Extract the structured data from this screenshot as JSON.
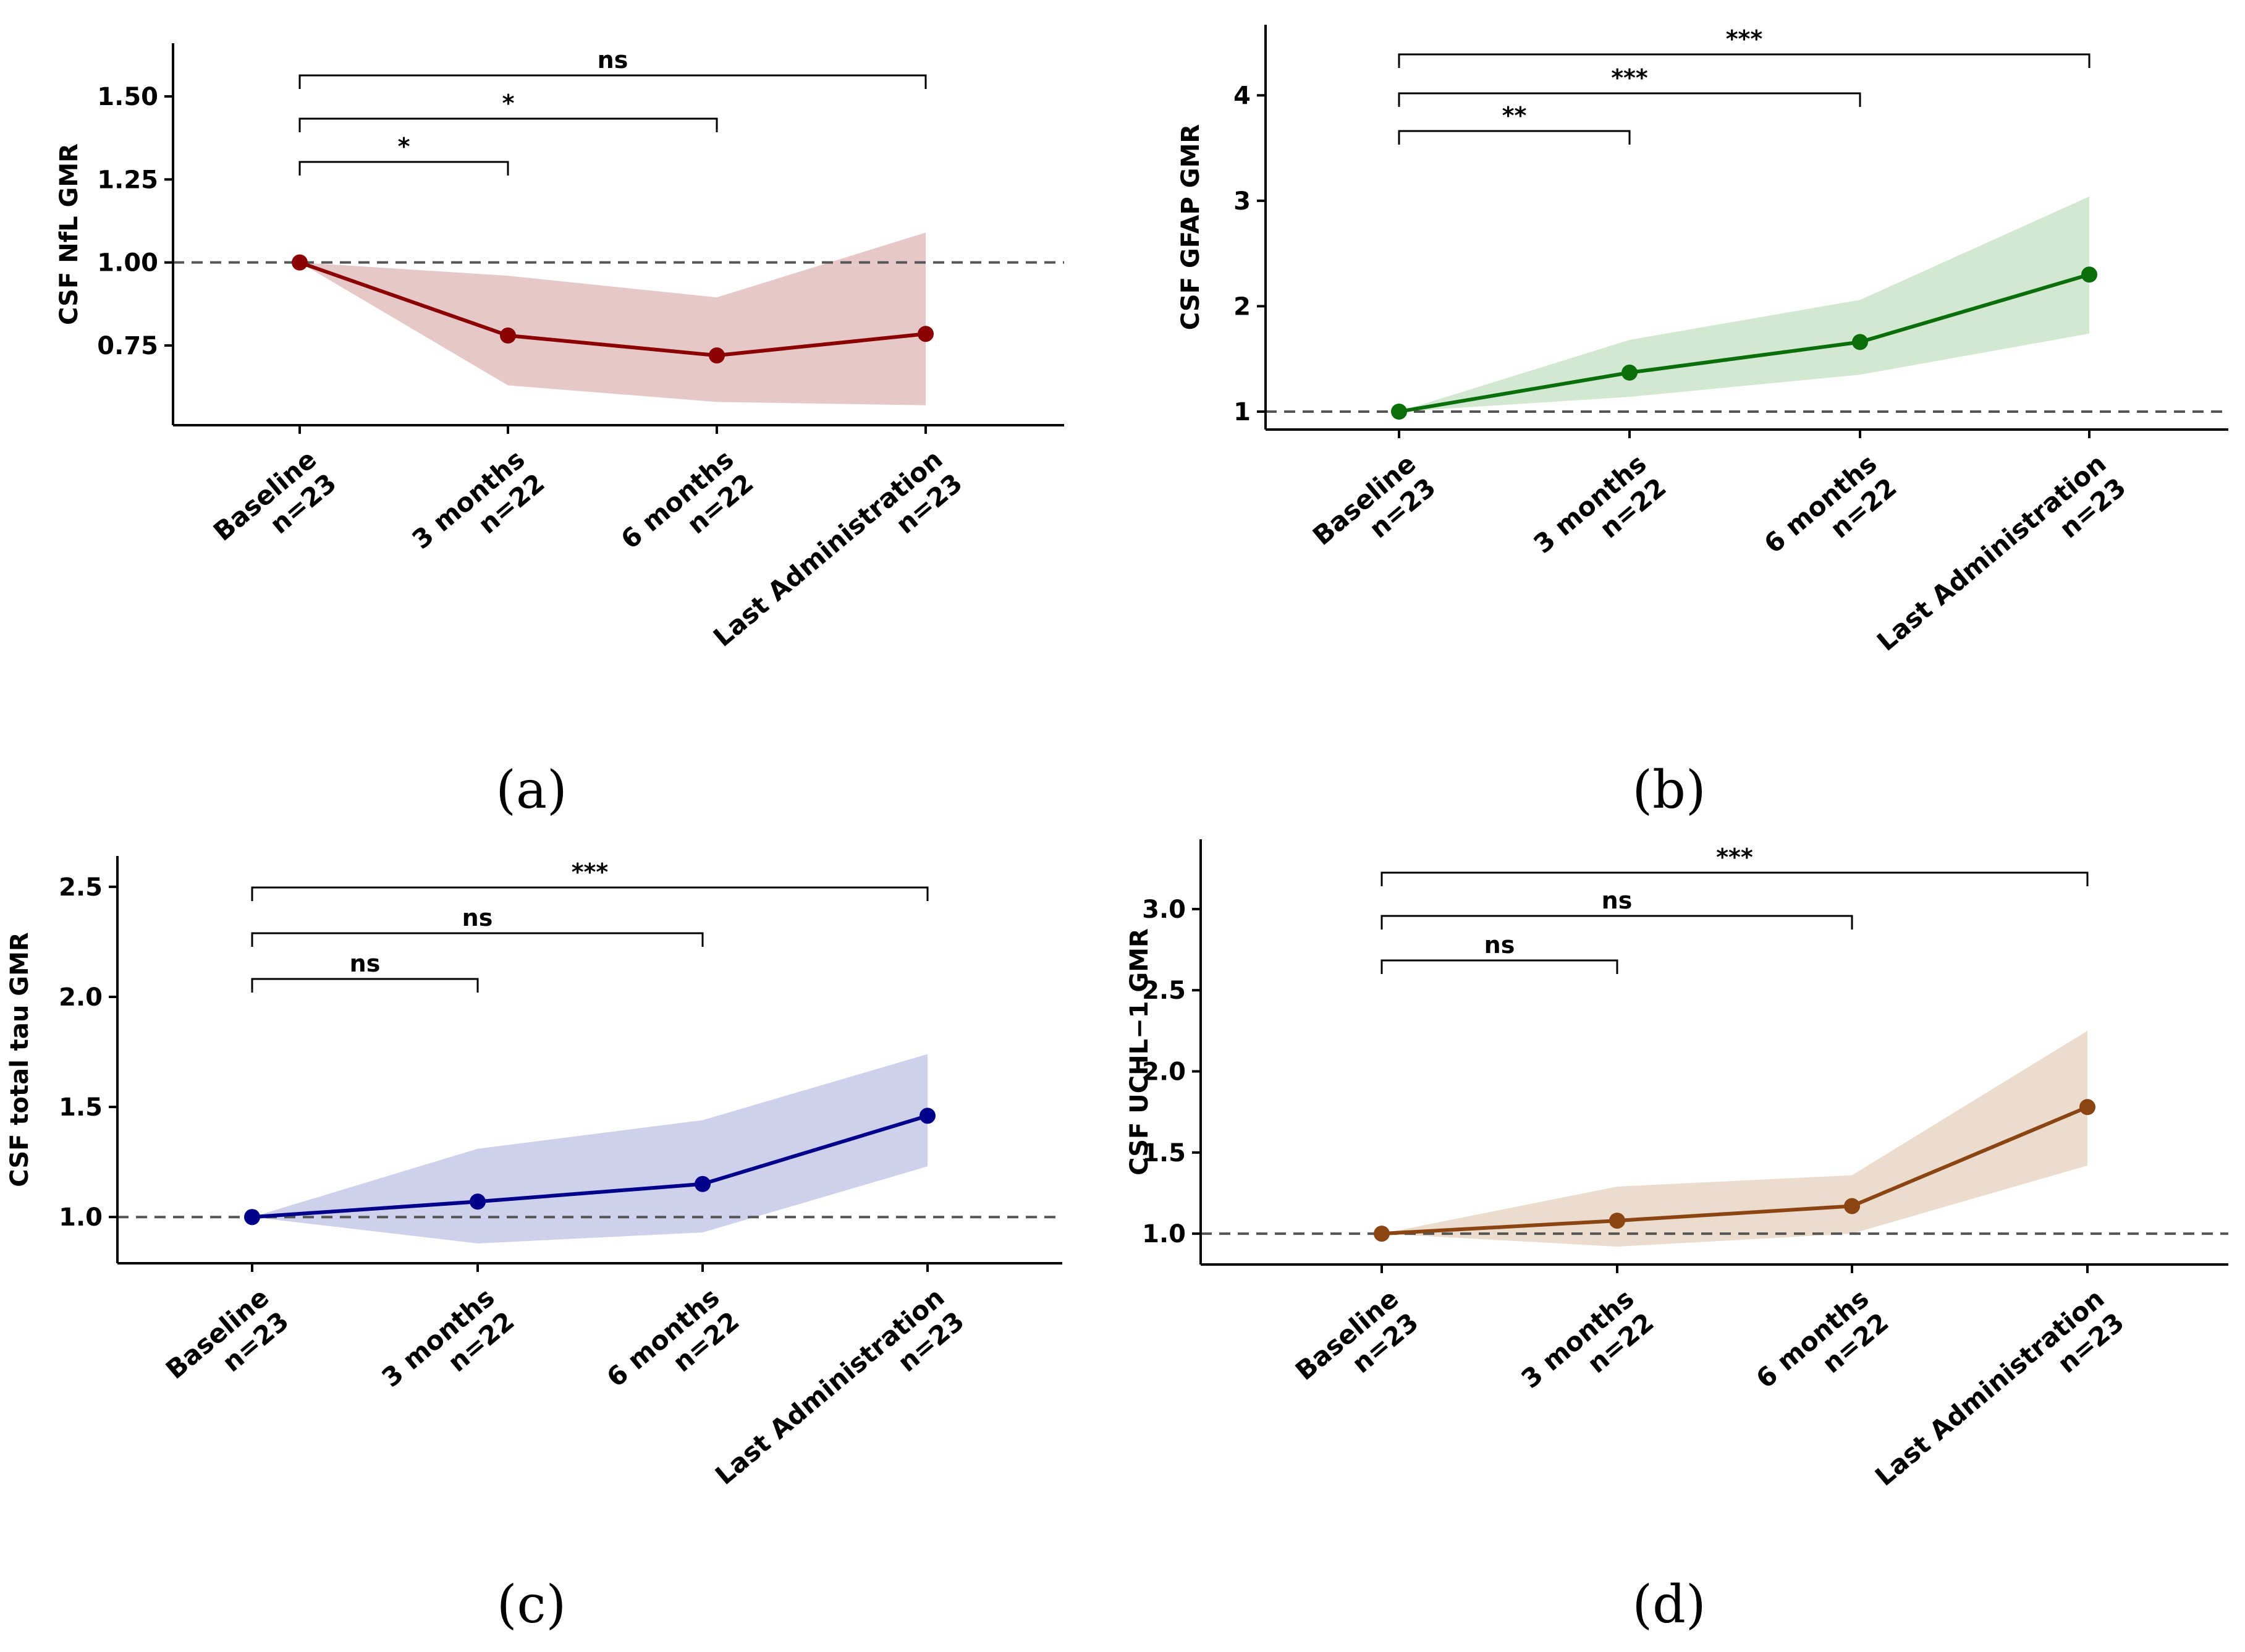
{
  "chart_data": [
    {
      "type": "line",
      "panel_label": "(a)",
      "ylabel": "CSF NfL GMR",
      "categories": [
        "Baseline",
        "3 months",
        "6 months",
        "Last Administration"
      ],
      "n_labels": [
        "n=23",
        "n=22",
        "n=22",
        "n=23"
      ],
      "values": [
        1.0,
        0.78,
        0.72,
        0.785
      ],
      "ci_lower": [
        1.0,
        0.63,
        0.58,
        0.57
      ],
      "ci_upper": [
        1.0,
        0.96,
        0.895,
        1.09
      ],
      "ylim": [
        0.51,
        1.66
      ],
      "yticks": [
        0.75,
        1.0,
        1.25,
        1.5
      ],
      "ytick_labels": [
        "0.75",
        "1.00",
        "1.25",
        "1.50"
      ],
      "reference_line": 1.0,
      "color": "#8b0000",
      "band_color": "#e7c8c8",
      "comparisons": [
        {
          "from": "Baseline",
          "to": "3 months",
          "label": "*"
        },
        {
          "from": "Baseline",
          "to": "6 months",
          "label": "*"
        },
        {
          "from": "Baseline",
          "to": "Last Administration",
          "label": "ns"
        }
      ]
    },
    {
      "type": "line",
      "panel_label": "(b)",
      "ylabel": "CSF GFAP GMR",
      "categories": [
        "Baseline",
        "3 months",
        "6 months",
        "Last Administration"
      ],
      "n_labels": [
        "n=23",
        "n=22",
        "n=22",
        "n=23"
      ],
      "values": [
        1.0,
        1.37,
        1.66,
        2.3
      ],
      "ci_lower": [
        1.0,
        1.14,
        1.35,
        1.74
      ],
      "ci_upper": [
        1.0,
        1.68,
        2.06,
        3.04
      ],
      "ylim": [
        0.83,
        4.67
      ],
      "yticks": [
        1,
        2,
        3,
        4
      ],
      "ytick_labels": [
        "1",
        "2",
        "3",
        "4"
      ],
      "reference_line": 1.0,
      "color": "#0a6e0a",
      "band_color": "#d3e8d1",
      "comparisons": [
        {
          "from": "Baseline",
          "to": "3 months",
          "label": "**"
        },
        {
          "from": "Baseline",
          "to": "6 months",
          "label": "***"
        },
        {
          "from": "Baseline",
          "to": "Last Administration",
          "label": "***"
        }
      ]
    },
    {
      "type": "line",
      "panel_label": "(c)",
      "ylabel": "CSF total tau GMR",
      "categories": [
        "Baseline",
        "3 months",
        "6 months",
        "Last Administration"
      ],
      "n_labels": [
        "n=23",
        "n=22",
        "n=22",
        "n=23"
      ],
      "values": [
        1.0,
        1.07,
        1.15,
        1.46
      ],
      "ci_lower": [
        1.0,
        0.88,
        0.93,
        1.23
      ],
      "ci_upper": [
        1.0,
        1.31,
        1.44,
        1.74
      ],
      "ylim": [
        0.79,
        2.64
      ],
      "yticks": [
        1.0,
        1.5,
        2.0,
        2.5
      ],
      "ytick_labels": [
        "1.0",
        "1.5",
        "2.0",
        "2.5"
      ],
      "reference_line": 1.0,
      "color": "#00008b",
      "band_color": "#cfd0ec",
      "comparisons": [
        {
          "from": "Baseline",
          "to": "3 months",
          "label": "ns"
        },
        {
          "from": "Baseline",
          "to": "6 months",
          "label": "ns"
        },
        {
          "from": "Baseline",
          "to": "Last Administration",
          "label": "***"
        }
      ]
    },
    {
      "type": "line",
      "panel_label": "(d)",
      "ylabel": "CSF UCHL−1 GMR",
      "categories": [
        "Baseline",
        "3 months",
        "6 months",
        "Last Administration"
      ],
      "n_labels": [
        "n=23",
        "n=22",
        "n=22",
        "n=23"
      ],
      "values": [
        1.0,
        1.08,
        1.17,
        1.78
      ],
      "ci_lower": [
        1.0,
        0.92,
        1.0,
        1.42
      ],
      "ci_upper": [
        1.0,
        1.29,
        1.36,
        2.25
      ],
      "ylim": [
        0.81,
        3.43
      ],
      "yticks": [
        1.0,
        1.5,
        2.0,
        2.5,
        3.0
      ],
      "ytick_labels": [
        "1.0",
        "1.5",
        "2.0",
        "2.5",
        "3.0"
      ],
      "reference_line": 1.0,
      "color": "#8b4513",
      "band_color": "#ecdccd",
      "comparisons": [
        {
          "from": "Baseline",
          "to": "3 months",
          "label": "ns"
        },
        {
          "from": "Baseline",
          "to": "6 months",
          "label": "ns"
        },
        {
          "from": "Baseline",
          "to": "Last Administration",
          "label": "***"
        }
      ]
    }
  ]
}
